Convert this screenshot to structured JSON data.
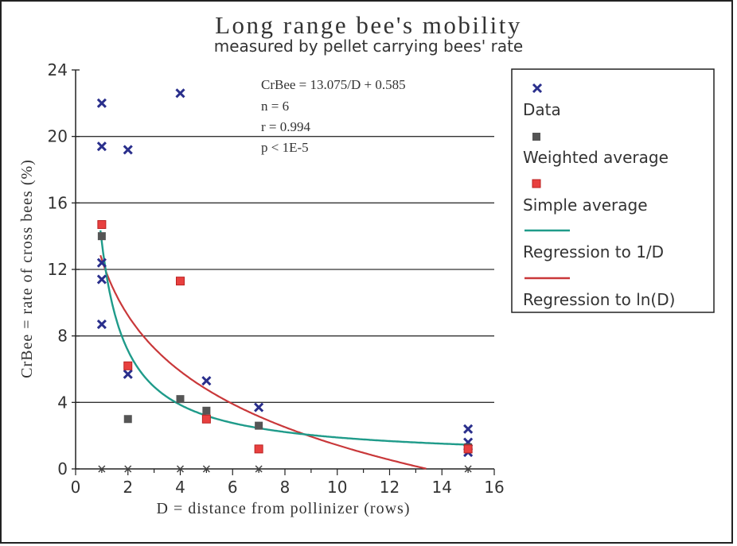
{
  "chart_data": {
    "type": "scatter",
    "title": "Long range bee's mobility",
    "subtitle": "measured by pellet carrying bees' rate",
    "xlabel": "D = distance from pollinizer (rows)",
    "ylabel": "CrBee = rate of cross bees (%)",
    "xlim": [
      0,
      16
    ],
    "ylim": [
      0,
      24
    ],
    "x_ticks": [
      "0",
      "2",
      "4",
      "6",
      "8",
      "10",
      "12",
      "14",
      "16"
    ],
    "y_ticks": [
      "0",
      "4",
      "8",
      "12",
      "16",
      "20",
      "24"
    ],
    "grid": "horizontal",
    "legend_position": "right",
    "annotations": [
      "CrBee = 13.075/D + 0.585",
      "n = 6",
      "r = 0.994",
      "p < 1E-5"
    ],
    "series": [
      {
        "name": "Data",
        "marker": "x",
        "color": "#2a2f8c",
        "points": [
          [
            1,
            22.0
          ],
          [
            1,
            19.4
          ],
          [
            1,
            12.4
          ],
          [
            1,
            11.4
          ],
          [
            1,
            8.7
          ],
          [
            1,
            0
          ],
          [
            2,
            19.2
          ],
          [
            2,
            5.7
          ],
          [
            2,
            0
          ],
          [
            4,
            22.6
          ],
          [
            4,
            0
          ],
          [
            5,
            5.3
          ],
          [
            5,
            0
          ],
          [
            7,
            3.7
          ],
          [
            7,
            0
          ],
          [
            15,
            2.4
          ],
          [
            15,
            1.6
          ],
          [
            15,
            1.0
          ],
          [
            15,
            0
          ]
        ]
      },
      {
        "name": "Weighted average",
        "marker": "square",
        "color": "#555555",
        "points": [
          [
            1,
            14.0
          ],
          [
            2,
            3.0
          ],
          [
            4,
            4.2
          ],
          [
            5,
            3.5
          ],
          [
            7,
            2.6
          ],
          [
            15,
            1.3
          ]
        ]
      },
      {
        "name": "Simple average",
        "marker": "square",
        "color": "#e8403f",
        "points": [
          [
            1,
            14.7
          ],
          [
            2,
            6.2
          ],
          [
            4,
            11.3
          ],
          [
            5,
            3.0
          ],
          [
            7,
            1.2
          ],
          [
            15,
            1.2
          ]
        ]
      },
      {
        "name": "Regression to 1/D",
        "type": "line",
        "color": "#1f9b8a",
        "formula": "13.075/D + 0.585"
      },
      {
        "name": "Regression to ln(D)",
        "type": "line",
        "color": "#c9383a",
        "formula": "12.6 - 4.85*ln(D)"
      }
    ]
  }
}
